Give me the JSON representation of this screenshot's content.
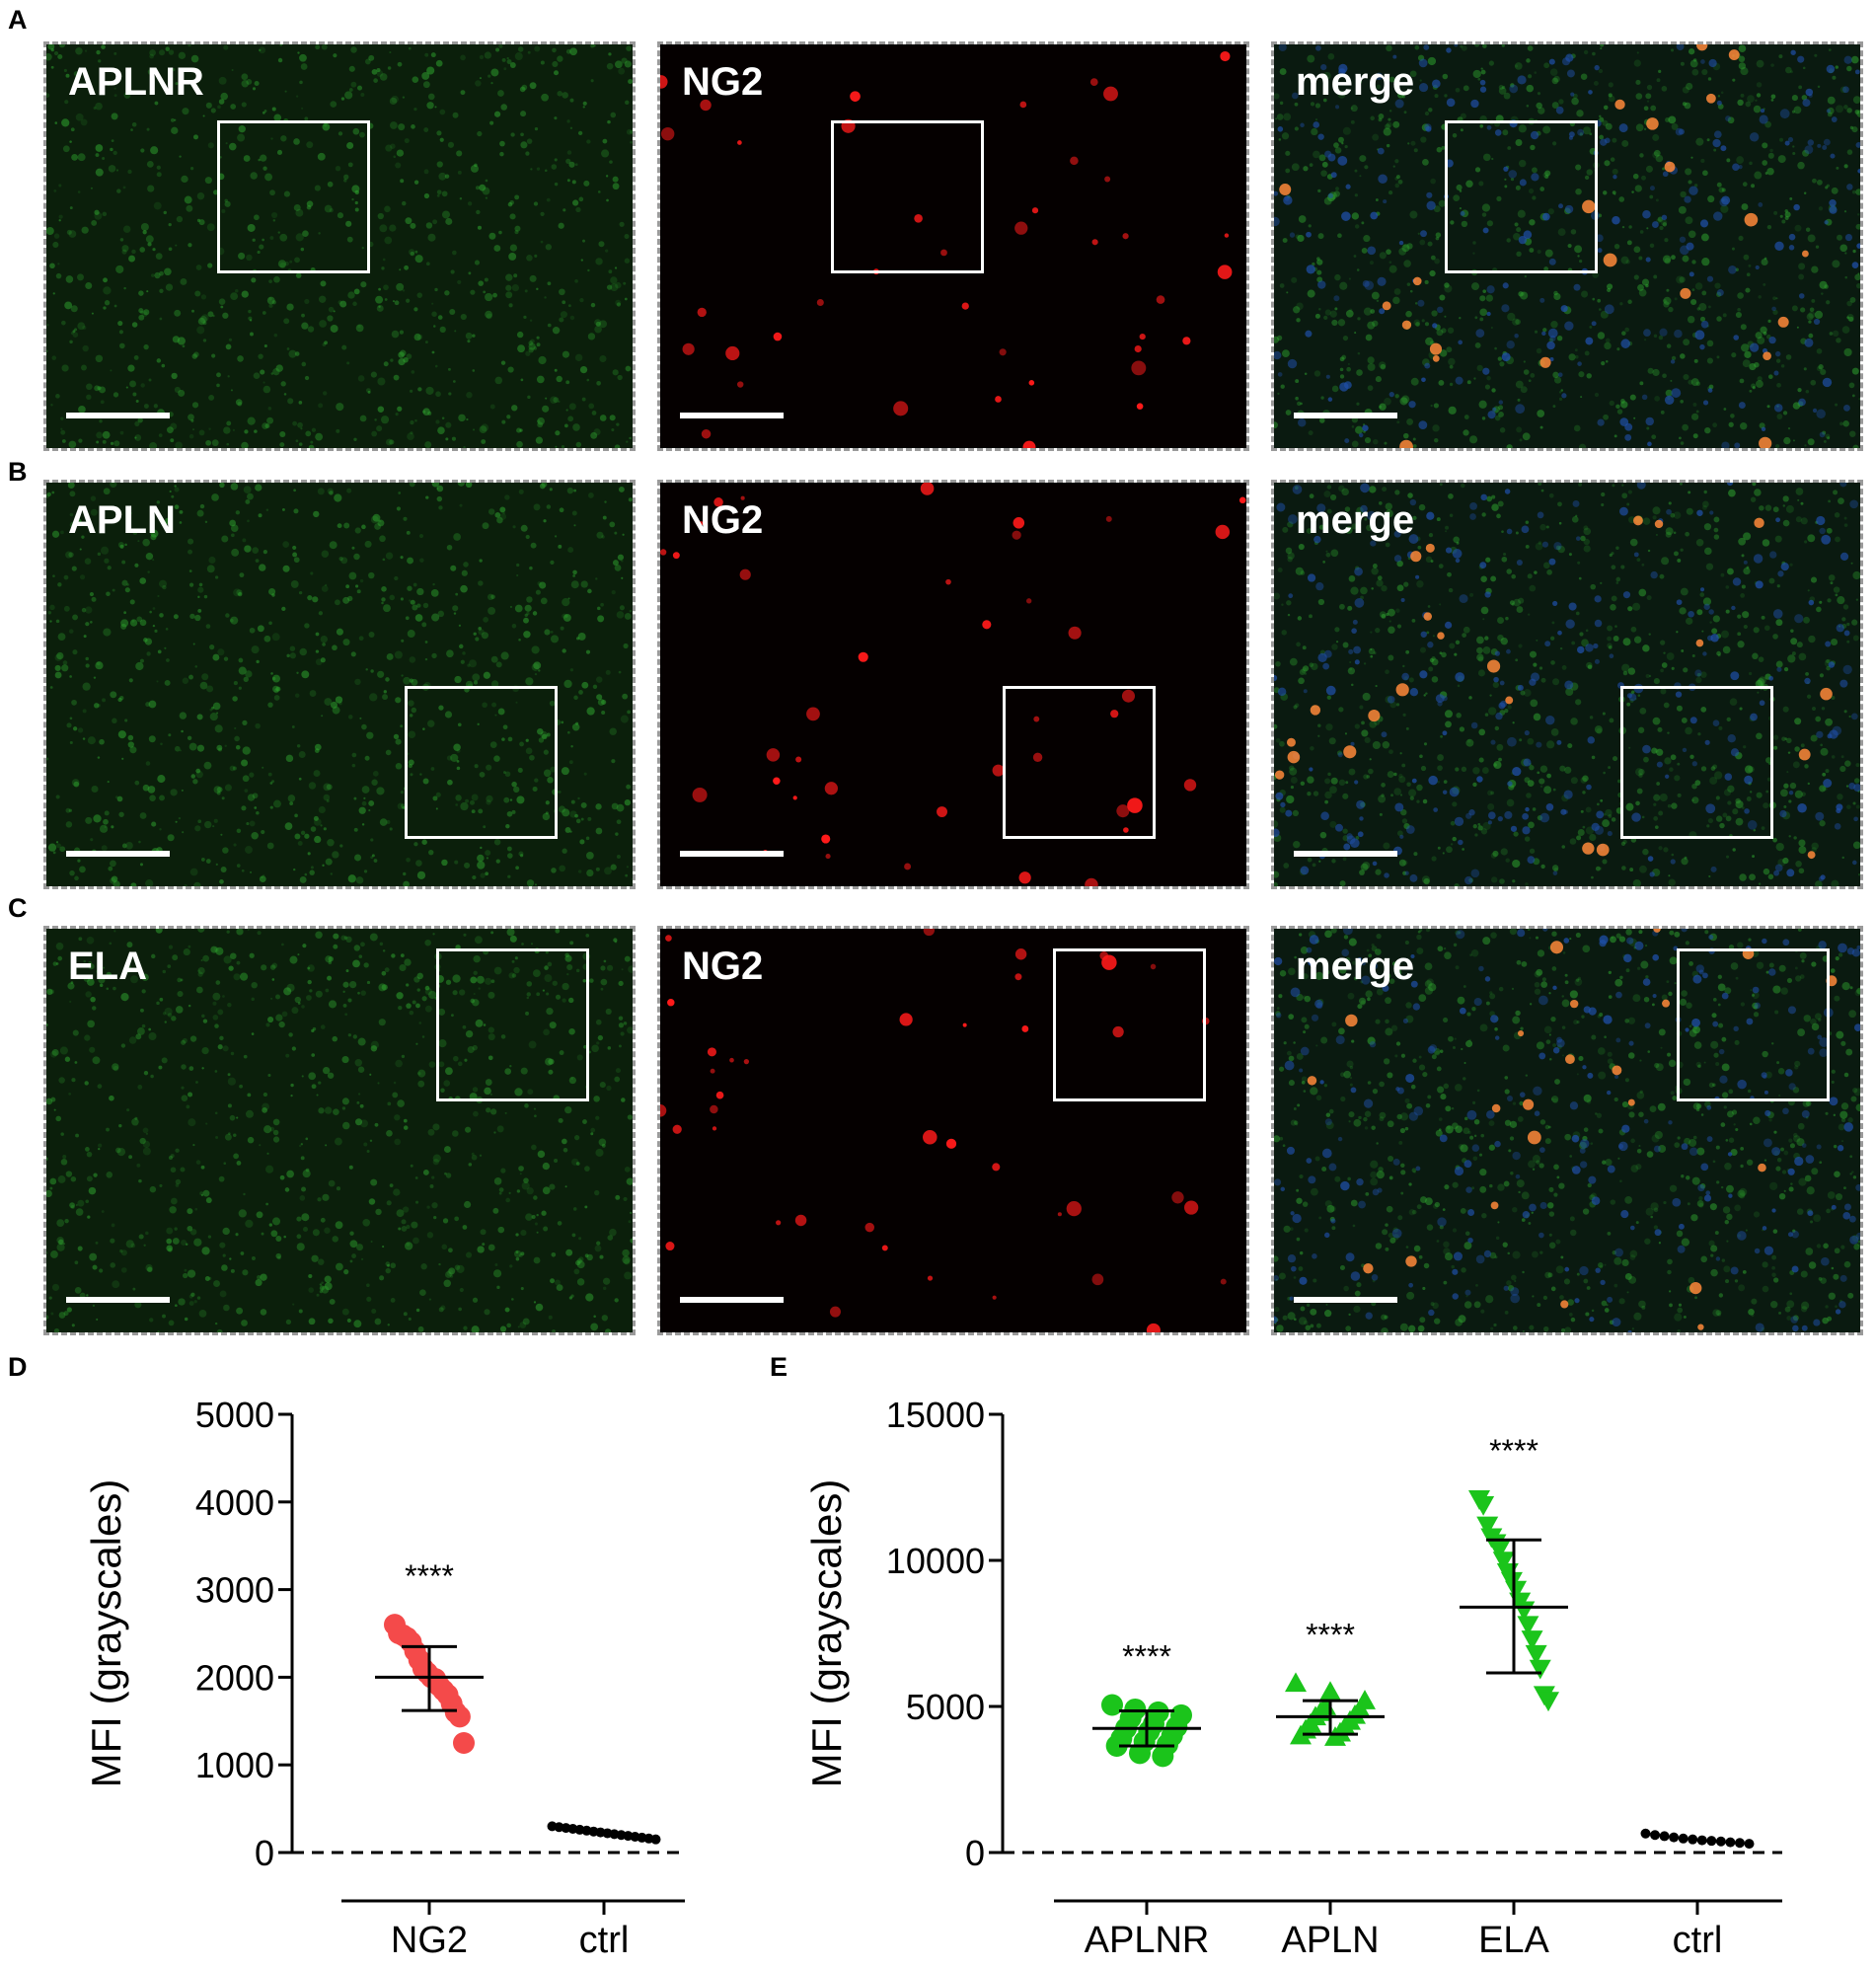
{
  "panel_letters": {
    "a": "A",
    "b": "B",
    "c": "C",
    "d": "D",
    "e": "E"
  },
  "rows": [
    {
      "cols": [
        {
          "label": "APLNR",
          "kind": "green"
        },
        {
          "label": "NG2",
          "kind": "red"
        },
        {
          "label": "merge",
          "kind": "merge"
        }
      ]
    },
    {
      "cols": [
        {
          "label": "APLN",
          "kind": "green"
        },
        {
          "label": "NG2",
          "kind": "red"
        },
        {
          "label": "merge",
          "kind": "merge"
        }
      ]
    },
    {
      "cols": [
        {
          "label": "ELA",
          "kind": "green"
        },
        {
          "label": "NG2",
          "kind": "red"
        },
        {
          "label": "merge",
          "kind": "merge"
        }
      ]
    }
  ],
  "colors": {
    "green_signal": "#2fa52f",
    "red_signal": "#ff1a1a",
    "nuclei": "#1f4fa8",
    "ng2_points": "#f44a4a",
    "aplnr_points": "#1bc41b",
    "ctrl_points": "#000000"
  },
  "chart_data": [
    {
      "type": "scatter",
      "ylabel": "MFI (grayscales)",
      "ylim": [
        0,
        5000
      ],
      "yticks": [
        0,
        1000,
        2000,
        3000,
        4000,
        5000
      ],
      "categories": [
        "NG2",
        "ctrl"
      ],
      "series": [
        {
          "category": "NG2",
          "marker": "circle",
          "color": "#f44a4a",
          "values": [
            2600,
            2500,
            2480,
            2450,
            2400,
            2300,
            2200,
            2100,
            2050,
            2000,
            1980,
            1900,
            1850,
            1800,
            1700,
            1600,
            1550,
            1250
          ],
          "mean": 2000,
          "sd_upper": 2350,
          "sd_lower": 1620,
          "significance": "****"
        },
        {
          "category": "ctrl",
          "marker": "circle",
          "color": "#000000",
          "values": [
            300,
            290,
            280,
            270,
            260,
            250,
            240,
            230,
            220,
            210,
            200,
            190,
            180,
            170,
            160,
            150
          ],
          "mean": 230
        }
      ]
    },
    {
      "type": "scatter",
      "ylabel": "MFI (grayscales)",
      "ylim": [
        0,
        15000
      ],
      "yticks": [
        0,
        5000,
        10000,
        15000
      ],
      "categories": [
        "APLNR",
        "APLN",
        "ELA",
        "ctrl"
      ],
      "series": [
        {
          "category": "APLNR",
          "marker": "circle",
          "color": "#1bc41b",
          "values": [
            5050,
            4900,
            4800,
            4700,
            4600,
            4400,
            4300,
            4250,
            4150,
            4000,
            3900,
            3800,
            3700,
            3650,
            3400,
            3300
          ],
          "mean": 4250,
          "sd_upper": 4850,
          "sd_lower": 3650,
          "significance": "****"
        },
        {
          "category": "APLN",
          "marker": "triangle-up",
          "color": "#1bc41b",
          "values": [
            5800,
            5500,
            5200,
            5000,
            4900,
            4800,
            4700,
            4650,
            4500,
            4400,
            4300,
            4200,
            4100,
            4000,
            3950
          ],
          "mean": 4650,
          "sd_upper": 5200,
          "sd_lower": 4050,
          "significance": "****"
        },
        {
          "category": "ELA",
          "marker": "triangle-down",
          "color": "#1bc41b",
          "values": [
            12100,
            11900,
            11200,
            10800,
            10600,
            10400,
            10000,
            9600,
            9300,
            9000,
            8600,
            8300,
            7800,
            7300,
            6800,
            6300,
            5400,
            5200
          ],
          "mean": 8400,
          "sd_upper": 10700,
          "sd_lower": 6150,
          "significance": "****"
        },
        {
          "category": "ctrl",
          "marker": "circle",
          "color": "#000000",
          "values": [
            650,
            600,
            560,
            520,
            480,
            450,
            420,
            400,
            380,
            350,
            330,
            300
          ],
          "mean": 450
        }
      ]
    }
  ]
}
